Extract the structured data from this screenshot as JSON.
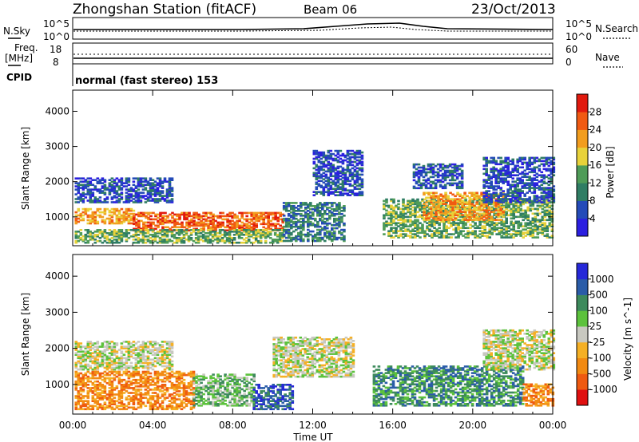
{
  "header": {
    "station": "Zhongshan Station (fitACF)",
    "beam": "Beam 06",
    "date": "23/Oct/2013"
  },
  "top_panel": {
    "left_label": "N.Sky",
    "right_label": "N.Search",
    "left_ticks": [
      "10^5",
      "10^0"
    ],
    "right_ticks": [
      "10^5",
      "10^0"
    ]
  },
  "freq_panel": {
    "left_label_1": "Freq.",
    "left_label_2": "[MHz]",
    "right_label": "Nave",
    "left_ticks": [
      "18",
      "8"
    ],
    "right_ticks": [
      "60",
      "0"
    ]
  },
  "cpid_panel": {
    "label": "CPID",
    "text": "normal (fast stereo) 153"
  },
  "chart_data": [
    {
      "type": "heatmap",
      "ylabel": "Slant Range [km]",
      "y_ticks": [
        1000,
        2000,
        3000,
        4000
      ],
      "ylim": [
        180,
        4600
      ],
      "x_ticks": [
        "00:00",
        "04:00",
        "08:00",
        "12:00",
        "16:00",
        "20:00",
        "00:00"
      ],
      "xlim_hours": [
        0,
        24
      ],
      "colorbar": {
        "label": "Power [dB]",
        "ticks": [
          "28",
          "24",
          "20",
          "16",
          "12",
          "8",
          "4"
        ],
        "colors": [
          "#2b1fe0",
          "#244bb8",
          "#2f7d64",
          "#4f9c58",
          "#e8d23a",
          "#f29d1e",
          "#f05a12",
          "#e11a0e"
        ]
      },
      "regions": [
        {
          "t0": 0.1,
          "t1": 5.0,
          "r0": 1400,
          "r1": 2100,
          "level": 1
        },
        {
          "t0": 0.1,
          "t1": 3.0,
          "r0": 800,
          "r1": 1250,
          "level": 5
        },
        {
          "t0": 3.0,
          "t1": 10.5,
          "r0": 600,
          "r1": 1100,
          "level": 6
        },
        {
          "t0": 0.1,
          "t1": 10.5,
          "r0": 250,
          "r1": 650,
          "level": 3
        },
        {
          "t0": 10.5,
          "t1": 13.5,
          "r0": 300,
          "r1": 1400,
          "level": 2
        },
        {
          "t0": 12.0,
          "t1": 14.5,
          "r0": 1600,
          "r1": 2900,
          "level": 1
        },
        {
          "t0": 15.5,
          "t1": 24.0,
          "r0": 400,
          "r1": 1500,
          "level": 3
        },
        {
          "t0": 17.5,
          "t1": 21.5,
          "r0": 900,
          "r1": 1700,
          "level": 5
        },
        {
          "t0": 17.0,
          "t1": 19.5,
          "r0": 1800,
          "r1": 2500,
          "level": 1
        },
        {
          "t0": 20.5,
          "t1": 24.0,
          "r0": 1400,
          "r1": 2700,
          "level": 1
        }
      ]
    },
    {
      "type": "heatmap",
      "ylabel": "Slant Range [km]",
      "y_ticks": [
        1000,
        2000,
        3000,
        4000
      ],
      "ylim": [
        180,
        4600
      ],
      "x_ticks": [
        "00:00",
        "04:00",
        "08:00",
        "12:00",
        "16:00",
        "20:00",
        "00:00"
      ],
      "xlim_hours": [
        0,
        24
      ],
      "xlabel": "Time UT",
      "colorbar": {
        "label": "Velocity [m s^-1]",
        "ticks": [
          "1000",
          "500",
          "100",
          "25",
          "-25",
          "-100",
          "-500",
          "-1000"
        ],
        "colors": [
          "#e01010",
          "#ef5a10",
          "#f28a12",
          "#f5b025",
          "#c8c8c0",
          "#5cc23c",
          "#3d8a5c",
          "#2a5ca8",
          "#2628d8"
        ]
      },
      "regions": [
        {
          "t0": 0.1,
          "t1": 5.0,
          "r0": 1400,
          "r1": 2200,
          "level": 4
        },
        {
          "t0": 0.1,
          "t1": 6.0,
          "r0": 300,
          "r1": 1350,
          "level": 2
        },
        {
          "t0": 6.0,
          "t1": 9.0,
          "r0": 400,
          "r1": 1300,
          "level": 5
        },
        {
          "t0": 9.0,
          "t1": 11.0,
          "r0": 300,
          "r1": 1000,
          "level": 7
        },
        {
          "t0": 10.0,
          "t1": 14.0,
          "r0": 1200,
          "r1": 2300,
          "level": 4
        },
        {
          "t0": 15.0,
          "t1": 22.5,
          "r0": 400,
          "r1": 1500,
          "level": 6
        },
        {
          "t0": 20.5,
          "t1": 24.0,
          "r0": 1400,
          "r1": 2500,
          "level": 4
        },
        {
          "t0": 22.5,
          "t1": 24.0,
          "r0": 400,
          "r1": 1000,
          "level": 2
        }
      ]
    }
  ]
}
